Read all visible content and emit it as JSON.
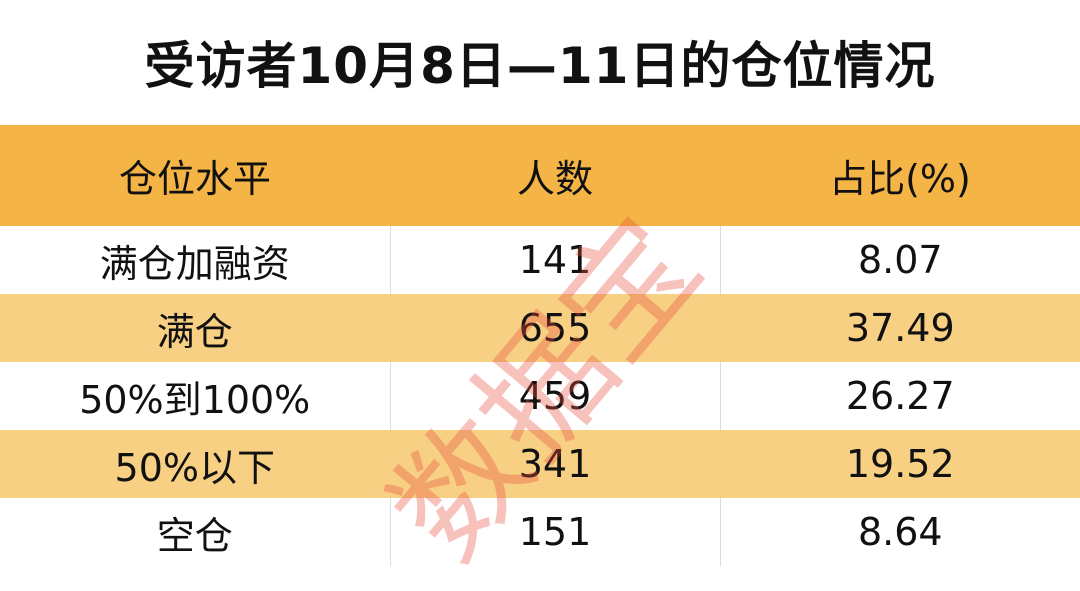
{
  "title": "受访者10月8日—11日的仓位情况",
  "watermark": "数据宝",
  "colors": {
    "header": "#F4B446",
    "alt_row": "#F8D084",
    "watermark": "#E8503C"
  },
  "chart_data": {
    "type": "table",
    "title": "受访者10月8日—11日的仓位情况",
    "columns": [
      "仓位水平",
      "人数",
      "占比(%)"
    ],
    "rows": [
      [
        "满仓加融资",
        "141",
        "8.07"
      ],
      [
        "满仓",
        "655",
        "37.49"
      ],
      [
        "50%到100%",
        "459",
        "26.27"
      ],
      [
        "50%以下",
        "341",
        "19.52"
      ],
      [
        "空仓",
        "151",
        "8.64"
      ]
    ]
  }
}
